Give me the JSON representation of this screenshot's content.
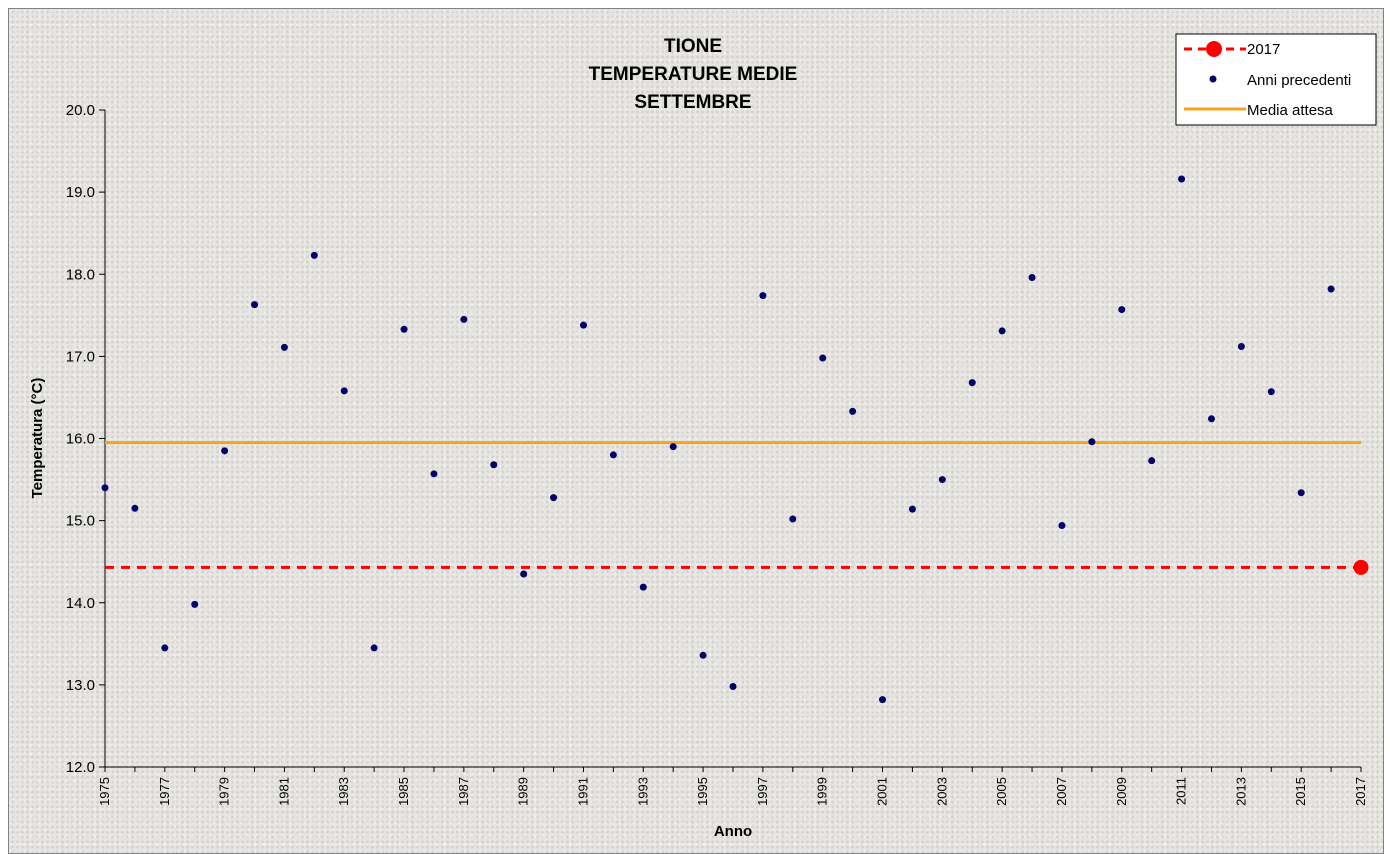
{
  "chart_data": {
    "type": "scatter",
    "title": [
      "TIONE",
      "TEMPERATURE MEDIE",
      "SETTEMBRE"
    ],
    "xlabel": "Anno",
    "ylabel": "Temperatura (°C)",
    "xlim": [
      1975,
      2017
    ],
    "ylim": [
      12.0,
      20.0
    ],
    "y_ticks": [
      "12.0",
      "13.0",
      "14.0",
      "15.0",
      "16.0",
      "17.0",
      "18.0",
      "19.0",
      "20.0"
    ],
    "x_ticks": [
      "1975",
      "1977",
      "1979",
      "1981",
      "1983",
      "1985",
      "1987",
      "1989",
      "1991",
      "1993",
      "1995",
      "1997",
      "1999",
      "2001",
      "2003",
      "2005",
      "2007",
      "2009",
      "2011",
      "2013",
      "2015",
      "2017"
    ],
    "legend_position": "top-right",
    "grid": false,
    "series": [
      {
        "name": "Anni precedenti",
        "color": "#000066",
        "x": [
          1975,
          1976,
          1977,
          1978,
          1979,
          1980,
          1981,
          1982,
          1983,
          1984,
          1985,
          1986,
          1987,
          1988,
          1989,
          1990,
          1991,
          1992,
          1993,
          1994,
          1995,
          1996,
          1997,
          1998,
          1999,
          2000,
          2001,
          2002,
          2003,
          2004,
          2005,
          2006,
          2007,
          2008,
          2009,
          2010,
          2011,
          2012,
          2013,
          2014,
          2015,
          2016
        ],
        "y": [
          15.4,
          15.15,
          13.45,
          13.98,
          15.85,
          17.63,
          17.11,
          18.23,
          16.58,
          13.45,
          17.33,
          15.57,
          17.45,
          15.68,
          14.35,
          15.28,
          17.38,
          15.8,
          14.19,
          15.9,
          13.36,
          12.98,
          17.74,
          15.02,
          16.98,
          16.33,
          12.82,
          15.14,
          15.5,
          16.68,
          17.31,
          17.96,
          14.94,
          15.96,
          17.57,
          15.73,
          19.16,
          16.24,
          17.12,
          16.57,
          15.34,
          17.82
        ]
      },
      {
        "name": "2017",
        "color": "#ff0000",
        "x": [
          2017
        ],
        "y": [
          14.43
        ],
        "reference_line": 14.43
      },
      {
        "name": "Media attesa",
        "color": "#f2a51e",
        "y_constant": 15.95
      }
    ]
  }
}
